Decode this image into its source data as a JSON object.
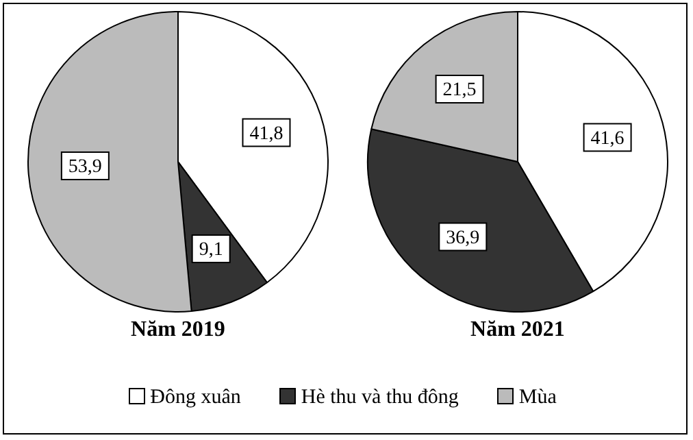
{
  "chart_data": [
    {
      "type": "pie",
      "title": "Năm 2019",
      "categories": [
        "Đông xuân",
        "Hè thu và thu đông",
        "Mùa"
      ],
      "values": [
        41.8,
        9.1,
        53.9
      ],
      "value_labels": [
        "41,8",
        "9,1",
        "53,9"
      ],
      "colors": [
        "#ffffff",
        "#333333",
        "#bbbbbb"
      ],
      "legend": "bottom"
    },
    {
      "type": "pie",
      "title": "Năm 2021",
      "values": [
        41.6,
        36.9,
        21.5
      ],
      "value_labels": [
        "41,6",
        "36,9",
        "21,5"
      ],
      "colors": [
        "#ffffff",
        "#333333",
        "#bbbbbb"
      ]
    }
  ]
}
